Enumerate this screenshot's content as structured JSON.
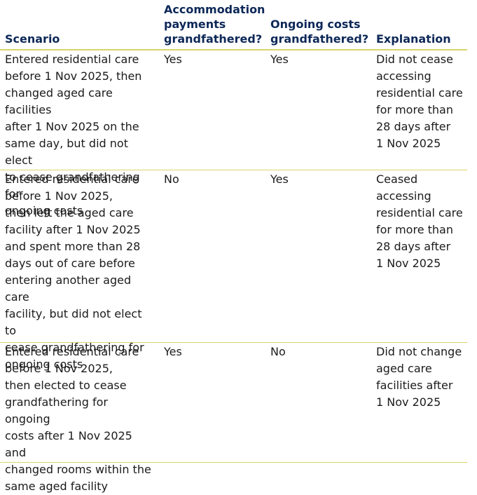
{
  "table": {
    "headers": {
      "scenario": "Scenario",
      "accommodation": "Accommodation\npayments\ngrandfathered?",
      "ongoing": "Ongoing costs\ngrandfathered?",
      "explanation": "Explanation"
    },
    "rows": [
      {
        "scenario": "Entered residential care\nbefore 1 Nov 2025, then\nchanged aged care facilities\nafter 1 Nov 2025 on the\nsame day, but did not elect\nto cease grandfathering for\nongoing costs",
        "accommodation": "Yes",
        "ongoing": "Yes",
        "explanation": "Did not cease\naccessing\nresidential care\nfor more than\n28 days after\n1 Nov 2025"
      },
      {
        "scenario": "Entered residential care\nbefore 1 Nov 2025,\nthen left the aged care\nfacility after 1 Nov 2025\nand spent more than 28\ndays out of care before\nentering another aged care\nfacility, but did not elect to\ncease grandfathering for\nongoing costs",
        "accommodation": "No",
        "ongoing": "Yes",
        "explanation": "Ceased\naccessing\nresidential care\nfor more than\n28 days after\n1 Nov 2025"
      },
      {
        "scenario": "Entered residential care\nbefore 1 Nov 2025,\nthen elected to cease\ngrandfathering for ongoing\ncosts after 1 Nov 2025 and\nchanged rooms within the\nsame aged facility",
        "accommodation": "Yes",
        "ongoing": "No",
        "explanation": "Did not change\naged care\nfacilities after\n1 Nov 2025"
      }
    ]
  }
}
